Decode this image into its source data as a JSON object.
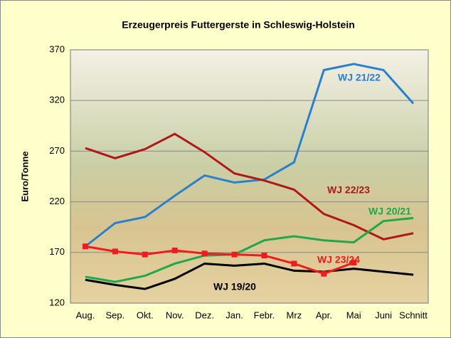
{
  "chart_data": {
    "type": "line",
    "title": "Erzeugerpreis Futtergerste in Schleswig-Holstein",
    "y_label": "Euro/Tonne",
    "categories": [
      "Aug.",
      "Sep.",
      "Okt.",
      "Nov.",
      "Dez.",
      "Jan.",
      "Febr.",
      "Mrz",
      "Apr.",
      "Mai",
      "Juni",
      "Schnitt"
    ],
    "ylim": [
      120,
      370
    ],
    "yticks": [
      120,
      170,
      220,
      270,
      320,
      370
    ],
    "grid": true,
    "series": [
      {
        "name": "WJ 21/22",
        "color": "#2a7fcf",
        "values": [
          176,
          199,
          205,
          226,
          246,
          239,
          242,
          259,
          350,
          356,
          350,
          317
        ]
      },
      {
        "name": "WJ 22/23",
        "color": "#b01818",
        "values": [
          273,
          263,
          272,
          287,
          269,
          248,
          241,
          232,
          208,
          197,
          183,
          189
        ]
      },
      {
        "name": "WJ 20/21",
        "color": "#1fa84a",
        "values": [
          146,
          141,
          147,
          159,
          167,
          168,
          182,
          186,
          182,
          180,
          201,
          204
        ]
      },
      {
        "name": "WJ 19/20",
        "color": "#000000",
        "values": [
          143,
          138,
          134,
          144,
          159,
          157,
          159,
          152,
          151,
          154,
          151,
          148
        ]
      },
      {
        "name": "WJ 23/24",
        "color": "#ee1c1c",
        "markers": true,
        "values": [
          176,
          171,
          168,
          172,
          169,
          168,
          167,
          159,
          149,
          160,
          null,
          null
        ]
      }
    ]
  }
}
